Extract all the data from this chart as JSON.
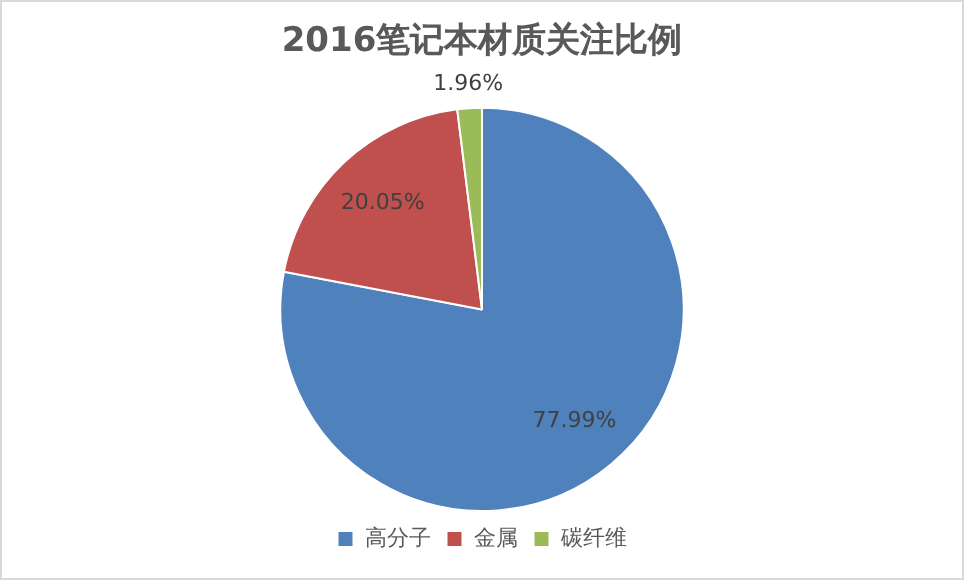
{
  "chart_data": {
    "type": "pie",
    "title": "2016笔记本材质关注比例",
    "categories": [
      "高分子",
      "金属",
      "碳纤维"
    ],
    "values": [
      77.99,
      20.05,
      1.96
    ],
    "colors": [
      "#4f81bd",
      "#c0504d",
      "#9bbb59"
    ],
    "value_labels": [
      "77.99%",
      "20.05%",
      "1.96%"
    ],
    "legend": "bottom"
  }
}
